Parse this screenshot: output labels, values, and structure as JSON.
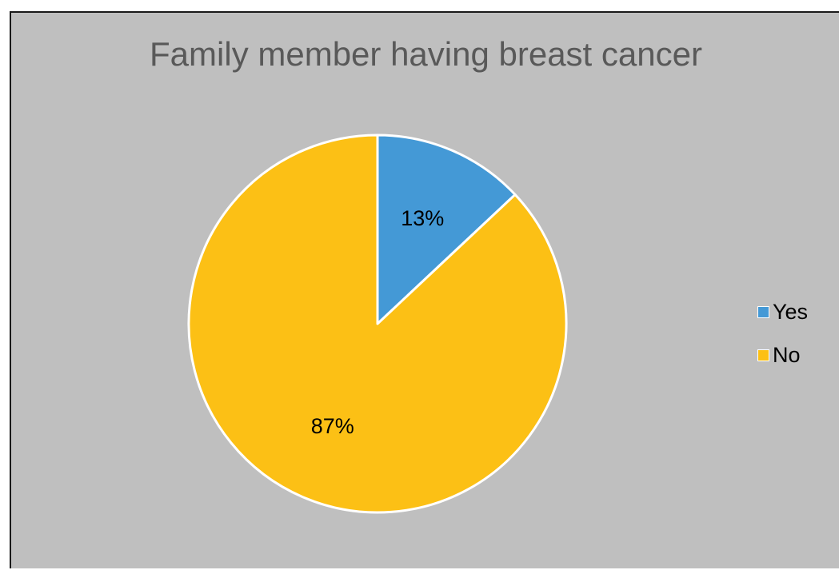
{
  "chart_data": {
    "type": "pie",
    "title": "Family member having breast cancer",
    "categories": [
      "Yes",
      "No"
    ],
    "values": [
      13,
      87
    ],
    "data_labels": [
      "13%",
      "87%"
    ],
    "colors": [
      "#4499d6",
      "#fcc015"
    ],
    "start_angle_deg": 0,
    "direction": "clockwise",
    "legend_position": "right",
    "background": "#bfbfbf",
    "slice_border": "#ffffff"
  }
}
